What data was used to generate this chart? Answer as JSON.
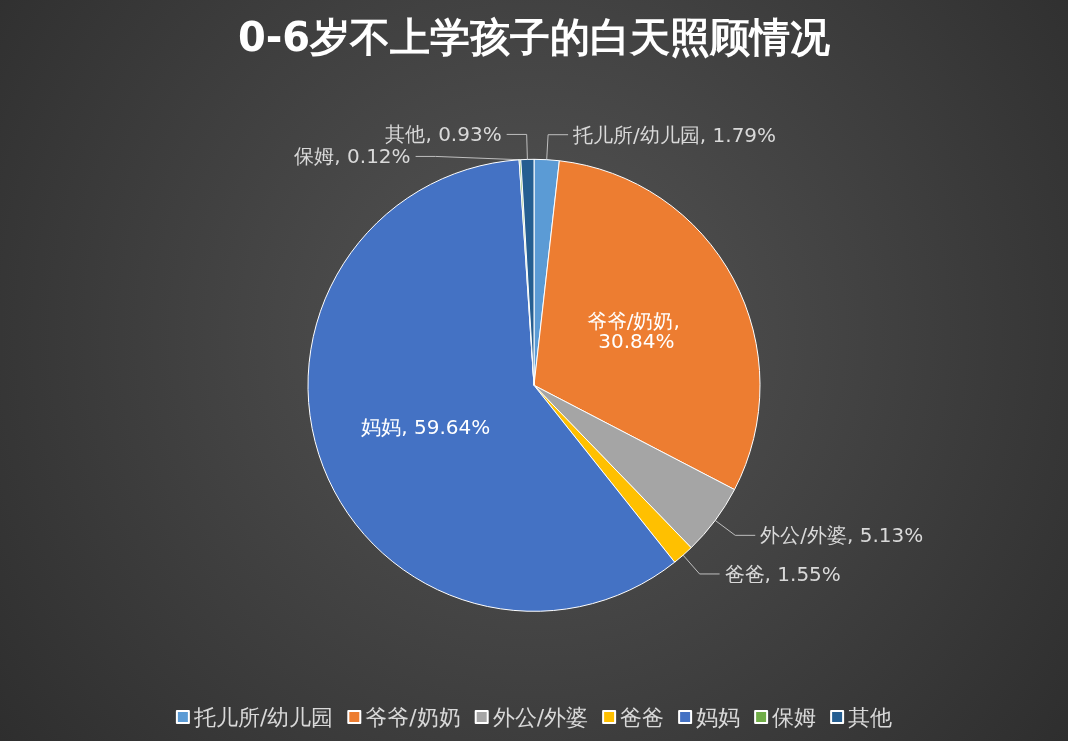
{
  "chart_data": {
    "type": "pie",
    "title": "0-6岁不上学孩子的白天照顾情况",
    "categories": [
      "托儿所/幼儿园",
      "爷爷/奶奶",
      "外公/外婆",
      "爸爸",
      "妈妈",
      "保姆",
      "其他"
    ],
    "values": [
      1.79,
      30.84,
      5.13,
      1.55,
      59.64,
      0.12,
      0.93
    ],
    "value_labels": [
      "托儿所/幼儿园, 1.79%",
      "爷爷/奶奶, 30.84%",
      "外公/外婆, 5.13%",
      "爸爸, 1.55%",
      "妈妈, 59.64%",
      "保姆, 0.12%",
      "其他, 0.93%"
    ],
    "colors": [
      "#5b9bd5",
      "#ed7d31",
      "#a5a5a5",
      "#ffc000",
      "#4472c4",
      "#70ad47",
      "#255e91"
    ],
    "legend": "bottom"
  }
}
